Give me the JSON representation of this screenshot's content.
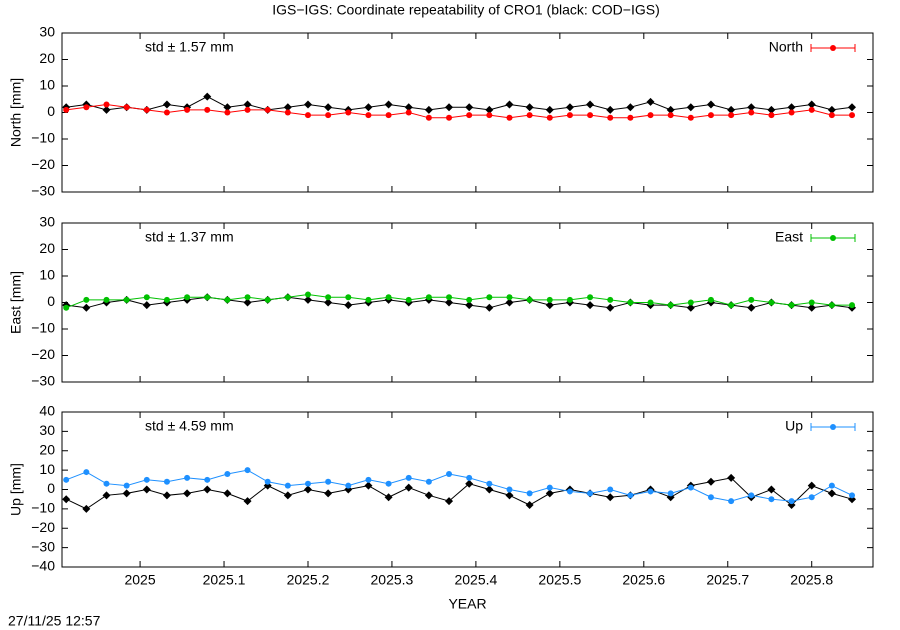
{
  "title": "IGS−IGS: Coordinate repeatability of CRO1 (black: COD−IGS)",
  "timestamp": "27/11/25 12:57",
  "chart_data": [
    {
      "type": "line",
      "ylabel": "North [mm]",
      "annotation": "std ± 1.57 mm",
      "annotation_color": "#ff0000",
      "legend": "top-right",
      "show_xtick_labels": false,
      "xlim": [
        2024.907,
        2025.873
      ],
      "xticks": [
        2025,
        2025.1,
        2025.2,
        2025.3,
        2025.4,
        2025.5,
        2025.6,
        2025.7,
        2025.8
      ],
      "ylim": [
        -30,
        30
      ],
      "yticks": [
        {
          "value": -30,
          "label": "−30"
        },
        {
          "value": -20,
          "label": "−20"
        },
        {
          "value": -10,
          "label": "−10"
        },
        0,
        10,
        20,
        30
      ],
      "x": [
        2024.912,
        2024.936,
        2024.96,
        2024.984,
        2025.008,
        2025.032,
        2025.056,
        2025.08,
        2025.104,
        2025.128,
        2025.152,
        2025.176,
        2025.2,
        2025.224,
        2025.248,
        2025.272,
        2025.296,
        2025.32,
        2025.344,
        2025.368,
        2025.392,
        2025.416,
        2025.44,
        2025.464,
        2025.488,
        2025.512,
        2025.536,
        2025.56,
        2025.584,
        2025.608,
        2025.632,
        2025.656,
        2025.68,
        2025.704,
        2025.728,
        2025.752,
        2025.776,
        2025.8,
        2025.824,
        2025.848
      ],
      "series": [
        {
          "name": "North",
          "color": "#ff0000",
          "values": [
            1,
            2,
            3,
            2,
            1,
            0,
            1,
            1,
            0,
            1,
            1,
            0,
            -1,
            -1,
            0,
            -1,
            -1,
            0,
            -2,
            -2,
            -1,
            -1,
            -2,
            -1,
            -2,
            -1,
            -1,
            -2,
            -2,
            -1,
            -1,
            -2,
            -1,
            -1,
            0,
            -1,
            0,
            1,
            -1,
            -1
          ]
        },
        {
          "color": "#000000",
          "values": [
            2,
            3,
            1,
            2,
            1,
            3,
            2,
            6,
            2,
            3,
            1,
            2,
            3,
            2,
            1,
            2,
            3,
            2,
            1,
            2,
            2,
            1,
            3,
            2,
            1,
            2,
            3,
            1,
            2,
            4,
            1,
            2,
            3,
            1,
            2,
            1,
            2,
            3,
            1,
            2
          ]
        }
      ]
    },
    {
      "type": "line",
      "ylabel": "East [mm]",
      "annotation": "std ± 1.37 mm",
      "annotation_color": "#00c000",
      "legend": "top-right",
      "show_xtick_labels": false,
      "xlim": [
        2024.907,
        2025.873
      ],
      "xticks": [
        2025,
        2025.1,
        2025.2,
        2025.3,
        2025.4,
        2025.5,
        2025.6,
        2025.7,
        2025.8
      ],
      "ylim": [
        -30,
        30
      ],
      "yticks": [
        {
          "value": -30,
          "label": "−30"
        },
        {
          "value": -20,
          "label": "−20"
        },
        {
          "value": -10,
          "label": "−10"
        },
        0,
        10,
        20,
        30
      ],
      "x": [
        2024.912,
        2024.936,
        2024.96,
        2024.984,
        2025.008,
        2025.032,
        2025.056,
        2025.08,
        2025.104,
        2025.128,
        2025.152,
        2025.176,
        2025.2,
        2025.224,
        2025.248,
        2025.272,
        2025.296,
        2025.32,
        2025.344,
        2025.368,
        2025.392,
        2025.416,
        2025.44,
        2025.464,
        2025.488,
        2025.512,
        2025.536,
        2025.56,
        2025.584,
        2025.608,
        2025.632,
        2025.656,
        2025.68,
        2025.704,
        2025.728,
        2025.752,
        2025.776,
        2025.8,
        2025.824,
        2025.848
      ],
      "series": [
        {
          "name": "East",
          "color": "#00c000",
          "values": [
            -2,
            1,
            1,
            1,
            2,
            1,
            2,
            2,
            1,
            2,
            1,
            2,
            3,
            2,
            2,
            1,
            2,
            1,
            2,
            2,
            1,
            2,
            2,
            1,
            1,
            1,
            2,
            1,
            0,
            0,
            -1,
            0,
            1,
            -1,
            1,
            0,
            -1,
            0,
            -1,
            -1
          ]
        },
        {
          "color": "#000000",
          "values": [
            -1,
            -2,
            0,
            1,
            -1,
            0,
            1,
            2,
            1,
            0,
            1,
            2,
            1,
            0,
            -1,
            0,
            1,
            0,
            1,
            0,
            -1,
            -2,
            0,
            1,
            -1,
            0,
            -1,
            -2,
            0,
            -1,
            -1,
            -2,
            0,
            -1,
            -2,
            0,
            -1,
            -2,
            -1,
            -2
          ]
        }
      ]
    },
    {
      "type": "line",
      "ylabel": "Up [mm]",
      "annotation": "std ± 4.59 mm",
      "annotation_color": "#1e90ff",
      "legend": "top-right",
      "show_xtick_labels": true,
      "xlabel": "YEAR",
      "xlim": [
        2024.907,
        2025.873
      ],
      "xticks": [
        2025,
        2025.1,
        2025.2,
        2025.3,
        2025.4,
        2025.5,
        2025.6,
        2025.7,
        2025.8
      ],
      "ylim": [
        -40,
        40
      ],
      "yticks": [
        {
          "value": -40,
          "label": "−40"
        },
        {
          "value": -30,
          "label": "−30"
        },
        {
          "value": -20,
          "label": "−20"
        },
        {
          "value": -10,
          "label": "−10"
        },
        0,
        10,
        20,
        30,
        40
      ],
      "x": [
        2024.912,
        2024.936,
        2024.96,
        2024.984,
        2025.008,
        2025.032,
        2025.056,
        2025.08,
        2025.104,
        2025.128,
        2025.152,
        2025.176,
        2025.2,
        2025.224,
        2025.248,
        2025.272,
        2025.296,
        2025.32,
        2025.344,
        2025.368,
        2025.392,
        2025.416,
        2025.44,
        2025.464,
        2025.488,
        2025.512,
        2025.536,
        2025.56,
        2025.584,
        2025.608,
        2025.632,
        2025.656,
        2025.68,
        2025.704,
        2025.728,
        2025.752,
        2025.776,
        2025.8,
        2025.824,
        2025.848
      ],
      "series": [
        {
          "name": "Up",
          "color": "#1e90ff",
          "values": [
            5,
            9,
            3,
            2,
            5,
            4,
            6,
            5,
            8,
            10,
            4,
            2,
            3,
            4,
            2,
            5,
            3,
            6,
            4,
            8,
            6,
            3,
            0,
            -2,
            1,
            -1,
            -2,
            0,
            -3,
            -1,
            -2,
            1,
            -4,
            -6,
            -3,
            -5,
            -6,
            -4,
            2,
            -3
          ]
        },
        {
          "color": "#000000",
          "values": [
            -5,
            -10,
            -3,
            -2,
            0,
            -3,
            -2,
            0,
            -2,
            -6,
            2,
            -3,
            0,
            -2,
            0,
            2,
            -4,
            1,
            -3,
            -6,
            3,
            0,
            -3,
            -8,
            -2,
            0,
            -2,
            -4,
            -3,
            0,
            -4,
            2,
            4,
            6,
            -4,
            0,
            -8,
            2,
            -2,
            -5
          ]
        }
      ]
    }
  ]
}
